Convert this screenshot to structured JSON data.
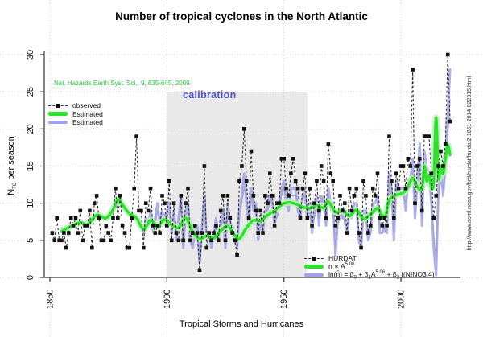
{
  "title": "Number of tropical cyclones in the North Atlantic",
  "annotations": {
    "citation": "Nat. Hazards Earth Syst. Sci., 9, 635-645, 2009",
    "calibration": "calibration",
    "url": "http://www.aoml.noaa.gov/hrd/hurdat/hurdat2-1851-2014-022315.html"
  },
  "axes": {
    "xlabel": "Tropical Storms and Hurricanes",
    "ylabel_parts": [
      [
        "t",
        "N"
      ],
      [
        "sub",
        "TC"
      ],
      [
        "t",
        " per season"
      ]
    ],
    "x_ticks": [
      "1850",
      "1900",
      "1950",
      "2000"
    ],
    "y_ticks": [
      "0",
      "5",
      "10",
      "15",
      "20",
      "25",
      "30"
    ]
  },
  "legend_top": [
    {
      "type": "observed",
      "parts": [
        [
          "t",
          "observed"
        ]
      ]
    },
    {
      "type": "green",
      "parts": [
        [
          "t",
          "Estimated"
        ]
      ]
    },
    {
      "type": "purple",
      "parts": [
        [
          "t",
          "Estimated"
        ]
      ]
    }
  ],
  "legend_bottom": [
    {
      "type": "observed",
      "parts": [
        [
          "t",
          "HURDAT"
        ]
      ]
    },
    {
      "type": "green",
      "parts": [
        [
          "t",
          "n ∝ A"
        ],
        [
          "sup",
          "5.06"
        ]
      ]
    },
    {
      "type": "purple",
      "parts": [
        [
          "t",
          "ln(n̂) = β"
        ],
        [
          "sub",
          "0"
        ],
        [
          "t",
          " + β"
        ],
        [
          "sub",
          "1"
        ],
        [
          "t",
          "A"
        ],
        [
          "sup",
          "5.06"
        ],
        [
          "t",
          " + β"
        ],
        [
          "sub",
          "2"
        ],
        [
          "t",
          " f(NINO3.4)"
        ]
      ]
    }
  ],
  "colors": {
    "observed": "#111111",
    "green_line": "#2be32b",
    "green_band": "#bdf0bd",
    "purple_line": "#9a9ae4",
    "gray_line": "#a8a8a8",
    "grid": "#cccccc",
    "calibration_fill": "#e9e9e9",
    "axis": "#333333",
    "calibration_text": "#5353c9",
    "citation_text": "#23d03c"
  },
  "chart_data": {
    "type": "line",
    "title": "Number of tropical cyclones in the North Atlantic",
    "xlabel": "Tropical Storms and Hurricanes",
    "ylabel": "NTC per season",
    "x_tick_years": [
      1850,
      1900,
      1950,
      2000
    ],
    "y_ticks": [
      0,
      5,
      10,
      15,
      20,
      25,
      30
    ],
    "ylim": [
      0,
      30
    ],
    "grid": "dotted",
    "calibration_region": {
      "x_span": [
        1900,
        1960
      ],
      "y_span": [
        0,
        25
      ]
    },
    "legend_top_position": "upper-left",
    "legend_bottom_position": "lower-right",
    "series": [
      {
        "name": "observed_HURDAT",
        "style": "dashed-black-squares",
        "start_year": 1851,
        "values": [
          6,
          5,
          8,
          5,
          5,
          6,
          4,
          6,
          8,
          7,
          8,
          6,
          9,
          5,
          7,
          7,
          9,
          4,
          10,
          11,
          8,
          5,
          5,
          7,
          6,
          5,
          8,
          12,
          8,
          11,
          7,
          6,
          4,
          4,
          8,
          12,
          19,
          9,
          9,
          4,
          10,
          9,
          12,
          7,
          6,
          7,
          6,
          11,
          10,
          7,
          13,
          5,
          10,
          6,
          5,
          11,
          5,
          10,
          12,
          5,
          6,
          7,
          6,
          1,
          6,
          15,
          4,
          6,
          5,
          6,
          7,
          5,
          9,
          11,
          5,
          11,
          8,
          6,
          5,
          3,
          13,
          15,
          20,
          13,
          8,
          17,
          11,
          9,
          6,
          9,
          6,
          11,
          10,
          14,
          11,
          7,
          10,
          10,
          16,
          16,
          12,
          11,
          14,
          16,
          13,
          12,
          8,
          12,
          14,
          8,
          12,
          7,
          10,
          13,
          9,
          15,
          13,
          8,
          18,
          14,
          13,
          7,
          8,
          11,
          9,
          10,
          6,
          12,
          9,
          11,
          12,
          6,
          4,
          13,
          11,
          6,
          7,
          12,
          11,
          14,
          8,
          7,
          8,
          7,
          19,
          13,
          8,
          14,
          12,
          15,
          15,
          12,
          16,
          15,
          28,
          10,
          15,
          16,
          9,
          19,
          19,
          19,
          14,
          8,
          11,
          15,
          17,
          15,
          18,
          30,
          21
        ]
      },
      {
        "name": "estimated_green",
        "style": "thick-green-smooth-with-band",
        "anchors": [
          [
            1855,
            6.2
          ],
          [
            1859,
            6.9
          ],
          [
            1863,
            7.4
          ],
          [
            1866,
            7.1
          ],
          [
            1870,
            8.4
          ],
          [
            1874,
            8.0
          ],
          [
            1877,
            9.2
          ],
          [
            1879,
            10.5
          ],
          [
            1881,
            9.8
          ],
          [
            1884,
            8.6
          ],
          [
            1887,
            8.0
          ],
          [
            1890,
            6.5
          ],
          [
            1893,
            7.7
          ],
          [
            1896,
            6.9
          ],
          [
            1899,
            7.8
          ],
          [
            1902,
            7.1
          ],
          [
            1905,
            6.7
          ],
          [
            1908,
            8.0
          ],
          [
            1911,
            6.2
          ],
          [
            1914,
            5.2
          ],
          [
            1917,
            5.6
          ],
          [
            1920,
            5.3
          ],
          [
            1923,
            6.3
          ],
          [
            1926,
            6.9
          ],
          [
            1929,
            5.7
          ],
          [
            1931,
            5.2
          ],
          [
            1934,
            6.7
          ],
          [
            1937,
            7.7
          ],
          [
            1940,
            7.6
          ],
          [
            1943,
            8.4
          ],
          [
            1946,
            9.0
          ],
          [
            1949,
            9.8
          ],
          [
            1952,
            10.1
          ],
          [
            1955,
            9.9
          ],
          [
            1958,
            9.5
          ],
          [
            1961,
            9.3
          ],
          [
            1964,
            9.7
          ],
          [
            1967,
            9.4
          ],
          [
            1969,
            10.2
          ],
          [
            1972,
            8.8
          ],
          [
            1975,
            9.0
          ],
          [
            1978,
            8.3
          ],
          [
            1981,
            9.1
          ],
          [
            1984,
            7.9
          ],
          [
            1987,
            8.5
          ],
          [
            1990,
            9.3
          ],
          [
            1993,
            8.1
          ],
          [
            1995,
            10.4
          ],
          [
            1998,
            11.1
          ],
          [
            2001,
            11.4
          ],
          [
            2003,
            12.2
          ],
          [
            2005,
            13.4
          ],
          [
            2007,
            12.2
          ],
          [
            2009,
            12.0
          ],
          [
            2010,
            15.0
          ],
          [
            2011,
            13.0
          ],
          [
            2012,
            13.8
          ],
          [
            2013,
            12.2
          ],
          [
            2014,
            13.0
          ],
          [
            2015,
            21.5
          ],
          [
            2016,
            13.5
          ],
          [
            2017,
            15.0
          ],
          [
            2018,
            14.0
          ],
          [
            2019,
            16.0
          ],
          [
            2020,
            17.8
          ],
          [
            2021,
            16.5
          ]
        ]
      },
      {
        "name": "estimated_purple",
        "style": "thick-lavender",
        "start_year": 1890,
        "values": [
          6,
          8,
          7,
          9,
          7,
          8,
          10,
          7,
          9,
          8,
          9,
          10,
          6,
          9,
          5,
          8,
          11,
          4,
          9,
          10,
          5,
          4,
          6,
          7,
          2,
          7,
          11,
          5,
          6,
          4,
          6,
          8,
          5,
          7,
          9,
          4,
          10,
          7,
          7,
          5,
          4,
          9,
          11,
          14,
          10,
          7,
          12,
          9,
          10,
          5,
          8,
          6,
          9,
          9,
          11,
          10,
          7,
          9,
          10,
          12,
          13,
          10,
          9,
          12,
          12,
          12,
          9,
          8,
          11,
          11,
          8,
          10,
          6,
          9,
          11,
          7,
          11,
          10,
          7,
          12,
          10,
          10,
          3,
          8,
          9,
          8,
          8,
          6,
          9,
          8,
          10,
          10,
          5,
          4,
          9,
          9,
          5,
          6,
          10,
          10,
          11,
          6,
          6,
          7,
          6,
          14,
          12,
          5,
          13,
          12,
          12,
          12,
          9,
          13,
          13,
          16,
          8,
          13,
          18,
          7,
          17,
          15,
          14,
          10,
          4,
          0.3,
          12,
          15,
          11,
          15,
          22,
          28
        ]
      },
      {
        "name": "model_gray",
        "style": "thin-gray",
        "start_year": 1890,
        "values": [
          5,
          7,
          8,
          8,
          6,
          7,
          9,
          8,
          8,
          7,
          8,
          9,
          7,
          8,
          6,
          7,
          10,
          5,
          8,
          9,
          6,
          5,
          5,
          6,
          3,
          6,
          10,
          6,
          5,
          5,
          5,
          7,
          6,
          6,
          8,
          5,
          9,
          8,
          6,
          6,
          5,
          8,
          10,
          12,
          11,
          8,
          11,
          10,
          9,
          6,
          7,
          7,
          8,
          10,
          10,
          11,
          8,
          8,
          9,
          11,
          12,
          11,
          10,
          11,
          11,
          11,
          10,
          9,
          10,
          12,
          9,
          9,
          7,
          8,
          10,
          8,
          10,
          11,
          8,
          11,
          9,
          9,
          4,
          7,
          8,
          9,
          7,
          7,
          8,
          9,
          9,
          9,
          6,
          5,
          8,
          8,
          6,
          7,
          9,
          9,
          10,
          7,
          7,
          6,
          7,
          12,
          11,
          6,
          12,
          11,
          11,
          11,
          10,
          12,
          12,
          14,
          9,
          12,
          16,
          8,
          15,
          14,
          13,
          11,
          6,
          2,
          11,
          13,
          12,
          14,
          19,
          24
        ]
      }
    ]
  }
}
